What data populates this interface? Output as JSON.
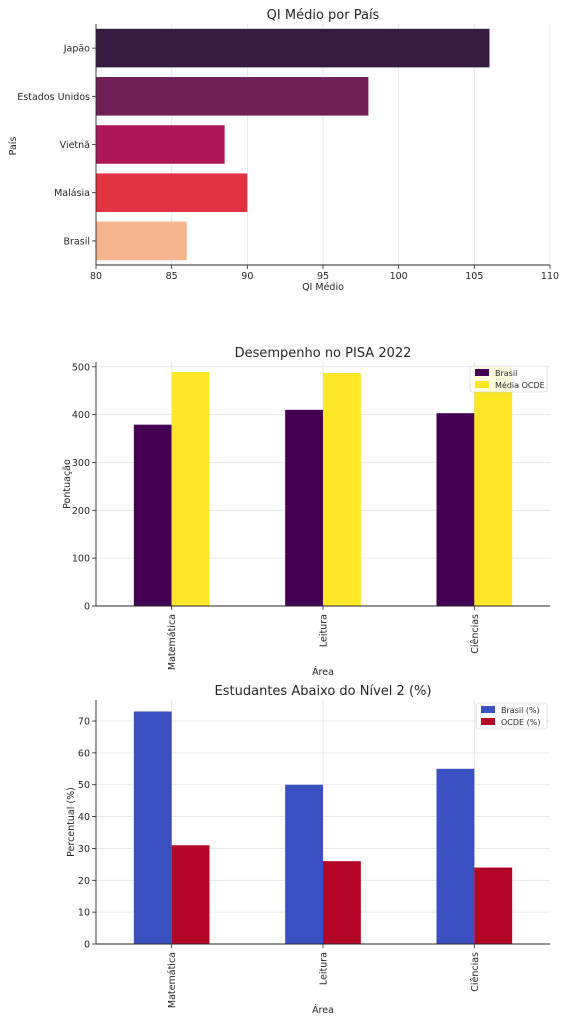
{
  "chart_data": [
    {
      "type": "bar",
      "orientation": "horizontal",
      "title": "QI Médio por País",
      "xlabel": "QI Médio",
      "ylabel": "País",
      "categories": [
        "Japão",
        "Estados Unidos",
        "Vietnã",
        "Malásia",
        "Brasil"
      ],
      "values": [
        106,
        98,
        88.5,
        90,
        86
      ],
      "colors": [
        "#35193e",
        "#701f57",
        "#ad1759",
        "#e13342",
        "#f6b48f"
      ],
      "xlim": [
        80,
        110
      ],
      "xticks": [
        "80",
        "85",
        "90",
        "95",
        "100",
        "105",
        "110"
      ],
      "grid": true
    },
    {
      "type": "bar",
      "title": "Desempenho no PISA 2022",
      "xlabel": "Área",
      "ylabel": "Pontuação",
      "categories": [
        "Matemática",
        "Leitura",
        "Ciências"
      ],
      "series": [
        {
          "name": "Brasil",
          "values": [
            379,
            410,
            403
          ],
          "color": "#440154"
        },
        {
          "name": "Média OCDE",
          "values": [
            489,
            487,
            500
          ],
          "color": "#fde725"
        }
      ],
      "ylim": [
        0,
        510
      ],
      "yticks": [
        "0",
        "100",
        "200",
        "300",
        "400",
        "500"
      ],
      "legend": "top-right",
      "grid": true
    },
    {
      "type": "bar",
      "title": "Estudantes Abaixo do Nível 2 (%)",
      "xlabel": "Área",
      "ylabel": "Percentual (%)",
      "categories": [
        "Matemática",
        "Leitura",
        "Ciências"
      ],
      "series": [
        {
          "name": "Brasil (%)",
          "values": [
            73,
            50,
            55
          ],
          "color": "#3a4fc0"
        },
        {
          "name": "OCDE (%)",
          "values": [
            31,
            26,
            24
          ],
          "color": "#b40426"
        }
      ],
      "ylim": [
        0,
        76.6
      ],
      "yticks": [
        "0",
        "10",
        "20",
        "30",
        "40",
        "50",
        "60",
        "70"
      ],
      "legend": "top-right",
      "grid": true
    }
  ]
}
